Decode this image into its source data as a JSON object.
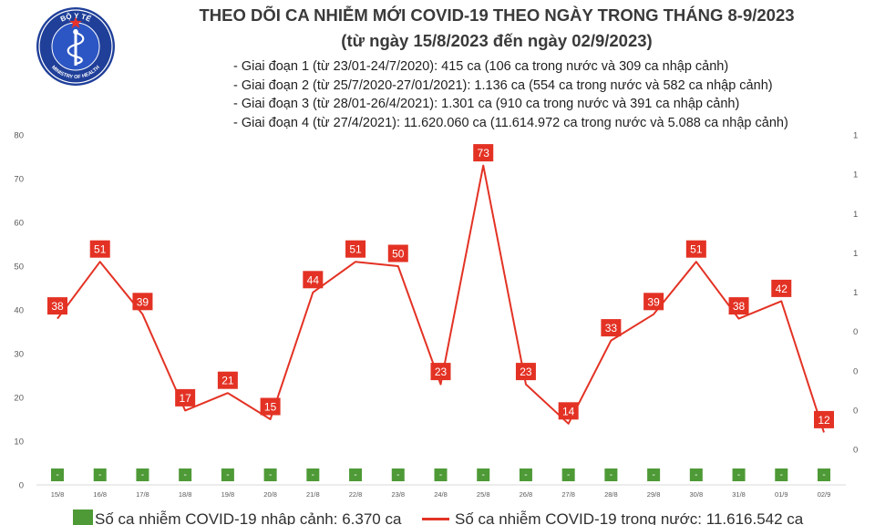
{
  "header": {
    "title": "THEO DÕI CA NHIỄM MỚI COVID-19 THEO NGÀY TRONG THÁNG 8-9/2023",
    "subtitle": "(từ ngày 15/8/2023 đến ngày 02/9/2023)",
    "logo_text_top": "BỘ Y TẾ",
    "logo_text_bottom": "MINISTRY OF HEALTH"
  },
  "notes": [
    "- Giai đoạn 1 (từ 23/01-24/7/2020): 415 ca (106 ca trong nước và 309 ca nhập cảnh)",
    "- Giai đoạn 2 (từ 25/7/2020-27/01/2021): 1.136 ca (554 ca trong nước và 582 ca nhập cảnh)",
    "- Giai đoạn 3 (từ 28/01-26/4/2021): 1.301 ca (910 ca trong nước và 391 ca nhập cảnh)",
    "- Giai đoạn 4 (từ 27/4/2021): 11.620.060 ca (11.614.972 ca trong nước và 5.088 ca nhập cảnh)"
  ],
  "legend": {
    "bar_label": "Số ca nhiễm COVID-19 nhập cảnh: 6.370 ca",
    "line_label": "Số ca nhiễm COVID-19 trong nước: 11.616.542 ca"
  },
  "colors": {
    "bar": "#4e9a37",
    "line": "#e33224",
    "label_box": "#e33224",
    "axis_text": "#595959"
  },
  "chart_data": {
    "type": "bar+line",
    "categories": [
      "15/8",
      "16/8",
      "17/8",
      "18/8",
      "19/8",
      "20/8",
      "21/8",
      "22/8",
      "23/8",
      "24/8",
      "25/8",
      "26/8",
      "27/8",
      "28/8",
      "29/8",
      "30/8",
      "31/8",
      "01/9",
      "02/9"
    ],
    "series": [
      {
        "name": "Số ca nhiễm COVID-19 nhập cảnh: 6.370 ca",
        "type": "bar",
        "axis": "right",
        "values": [
          0,
          0,
          0,
          0,
          0,
          0,
          0,
          0,
          0,
          0,
          0,
          0,
          0,
          0,
          0,
          0,
          0,
          0,
          0
        ],
        "data_labels": [
          "-",
          "-",
          "-",
          "-",
          "-",
          "-",
          "-",
          "-",
          "-",
          "-",
          "-",
          "-",
          "-",
          "-",
          "-",
          "-",
          "-",
          "-",
          "-"
        ]
      },
      {
        "name": "Số ca nhiễm COVID-19 trong nước: 11.616.542 ca",
        "type": "line",
        "axis": "left",
        "values": [
          38,
          51,
          39,
          17,
          21,
          15,
          44,
          51,
          50,
          23,
          73,
          23,
          14,
          33,
          39,
          51,
          38,
          42,
          12
        ]
      }
    ],
    "y_left": {
      "ticks": [
        0,
        10,
        20,
        30,
        40,
        50,
        60,
        70,
        80
      ],
      "ylim": [
        0,
        80
      ]
    },
    "y_right": {
      "tick_labels": [
        "0",
        "0",
        "0",
        "0",
        "1",
        "1",
        "1",
        "1",
        "1"
      ]
    },
    "grid": false,
    "legend_position": "bottom"
  }
}
